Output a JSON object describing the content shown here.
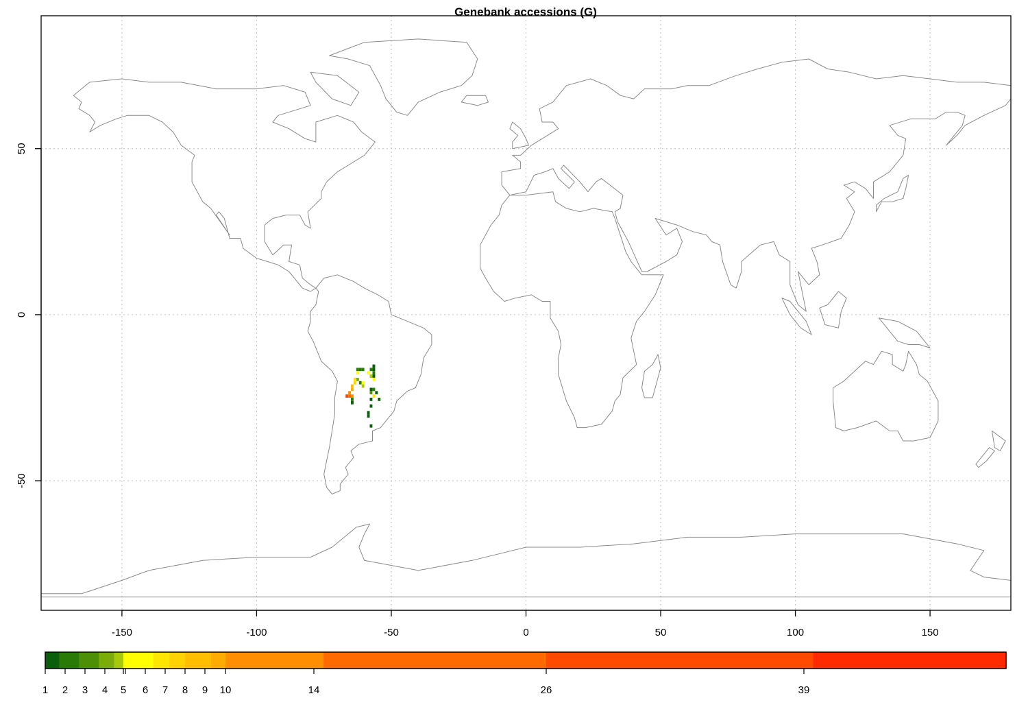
{
  "title": "Genebank accessions (G)",
  "x_axis": {
    "ticks": [
      -150,
      -100,
      -50,
      0,
      50,
      100,
      150
    ],
    "range": [
      -180,
      180
    ]
  },
  "y_axis": {
    "ticks": [
      50,
      0,
      -50
    ],
    "range": [
      -89,
      90
    ]
  },
  "grid": true,
  "legend": {
    "labels": [
      "1",
      "2",
      "3",
      "4",
      "5",
      "6",
      "7",
      "8",
      "9",
      "10",
      "14",
      "26",
      "39"
    ],
    "bins": [
      {
        "from": 1,
        "to": 1.7,
        "color": "#0a5f0a"
      },
      {
        "from": 1.7,
        "to": 2.7,
        "color": "#2a7a08"
      },
      {
        "from": 2.7,
        "to": 3.7,
        "color": "#4e8f08"
      },
      {
        "from": 3.7,
        "to": 4.5,
        "color": "#7aad0a"
      },
      {
        "from": 4.5,
        "to": 5.0,
        "color": "#a8c80a"
      },
      {
        "from": 5.0,
        "to": 6.4,
        "color": "#ffff00"
      },
      {
        "from": 6.4,
        "to": 7.2,
        "color": "#ffe600"
      },
      {
        "from": 7.2,
        "to": 8.0,
        "color": "#ffd200"
      },
      {
        "from": 8.0,
        "to": 9.3,
        "color": "#ffbf00"
      },
      {
        "from": 9.3,
        "to": 10.0,
        "color": "#ffac00"
      },
      {
        "from": 10.0,
        "to": 14.5,
        "color": "#ff8f00"
      },
      {
        "from": 14.5,
        "to": 26.0,
        "color": "#ff6a00"
      },
      {
        "from": 26.0,
        "to": 39.5,
        "color": "#ff4a00"
      },
      {
        "from": 39.5,
        "to": 50.0,
        "color": "#ff2a00"
      }
    ]
  },
  "chart_data": {
    "type": "heatmap",
    "title": "Genebank accessions (G)",
    "xlim": [
      -180,
      180
    ],
    "ylim": [
      -89,
      90
    ],
    "cells": [
      {
        "lon": -62.5,
        "lat": -16.5,
        "value": 2
      },
      {
        "lon": -61.5,
        "lat": -16.5,
        "value": 2
      },
      {
        "lon": -60.5,
        "lat": -16.5,
        "value": 2
      },
      {
        "lon": -57.5,
        "lat": -16.5,
        "value": 2
      },
      {
        "lon": -56.5,
        "lat": -15.5,
        "value": 1
      },
      {
        "lon": -56.5,
        "lat": -16.5,
        "value": 1
      },
      {
        "lon": -62.5,
        "lat": -17.5,
        "value": 6
      },
      {
        "lon": -58.5,
        "lat": -17.5,
        "value": 6
      },
      {
        "lon": -57.5,
        "lat": -18.5,
        "value": 5
      },
      {
        "lon": -56.5,
        "lat": -17.5,
        "value": 2
      },
      {
        "lon": -56.5,
        "lat": -18.5,
        "value": 1
      },
      {
        "lon": -63.5,
        "lat": -19.5,
        "value": 7
      },
      {
        "lon": -62.5,
        "lat": -19.5,
        "value": 4
      },
      {
        "lon": -61.5,
        "lat": -20.5,
        "value": 2
      },
      {
        "lon": -60.5,
        "lat": -20.5,
        "value": 6
      },
      {
        "lon": -60.5,
        "lat": -21.5,
        "value": 5
      },
      {
        "lon": -56.5,
        "lat": -19.5,
        "value": 6
      },
      {
        "lon": -63.5,
        "lat": -20.5,
        "value": 8
      },
      {
        "lon": -64.5,
        "lat": -21.5,
        "value": 9
      },
      {
        "lon": -64.5,
        "lat": -22.5,
        "value": 10
      },
      {
        "lon": -57.5,
        "lat": -22.5,
        "value": 1
      },
      {
        "lon": -56.5,
        "lat": -22.5,
        "value": 2
      },
      {
        "lon": -57.5,
        "lat": -23.5,
        "value": 3
      },
      {
        "lon": -65.5,
        "lat": -23.5,
        "value": 14
      },
      {
        "lon": -64.5,
        "lat": -24.5,
        "value": 12
      },
      {
        "lon": -66.5,
        "lat": -24.5,
        "value": 39
      },
      {
        "lon": -65.5,
        "lat": -24.5,
        "value": 26
      },
      {
        "lon": -56.5,
        "lat": -24.5,
        "value": 7
      },
      {
        "lon": -55.5,
        "lat": -23.5,
        "value": 1
      },
      {
        "lon": -57.5,
        "lat": -25.5,
        "value": 1
      },
      {
        "lon": -54.5,
        "lat": -25.5,
        "value": 1
      },
      {
        "lon": -64.5,
        "lat": -25.5,
        "value": 2
      },
      {
        "lon": -64.5,
        "lat": -26.5,
        "value": 1
      },
      {
        "lon": -57.5,
        "lat": -27.5,
        "value": 1
      },
      {
        "lon": -58.5,
        "lat": -29.5,
        "value": 1
      },
      {
        "lon": -58.5,
        "lat": -30.5,
        "value": 1
      },
      {
        "lon": -57.5,
        "lat": -33.5,
        "value": 1
      }
    ]
  }
}
